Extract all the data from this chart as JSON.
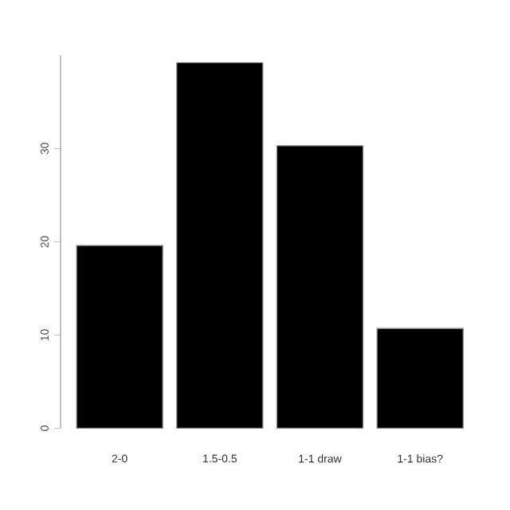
{
  "chart_data": {
    "type": "bar",
    "categories": [
      "2-0",
      "1.5-0.5",
      "1-1 draw",
      "1-1 bias?"
    ],
    "values": [
      19.6,
      39.2,
      30.3,
      10.7
    ],
    "color": "#000000",
    "ylim": [
      0,
      40
    ],
    "yticks": [
      0,
      10,
      20,
      30
    ]
  }
}
